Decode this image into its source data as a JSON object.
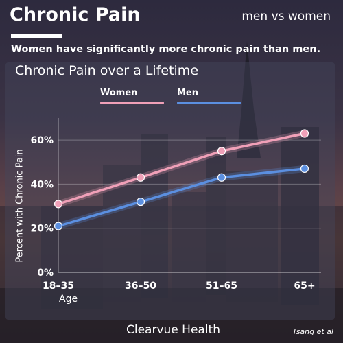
{
  "header": {
    "title": "Chronic Pain",
    "tagline": "men vs women",
    "subtitle": "Women have significantly more chronic pain than men."
  },
  "footer": {
    "brand": "Clearvue Health",
    "source": "Tsang et al"
  },
  "colors": {
    "women": "#f0a0b8",
    "men": "#5b8fe0",
    "text": "#ffffff"
  },
  "chart_data": {
    "type": "line",
    "title": "Chronic Pain over a Lifetime",
    "xlabel": "Age",
    "ylabel": "Percent with Chronic Pain",
    "categories": [
      "18–35",
      "36–50",
      "51–65",
      "65+"
    ],
    "series": [
      {
        "name": "Women",
        "values": [
          31,
          43,
          55,
          63
        ]
      },
      {
        "name": "Men",
        "values": [
          21,
          32,
          43,
          47
        ]
      }
    ],
    "ylim": [
      0,
      70
    ],
    "yticks": [
      0,
      20,
      40,
      60
    ],
    "ytick_labels": [
      "0%",
      "20%",
      "40%",
      "60%"
    ],
    "grid": true,
    "legend": "top"
  }
}
